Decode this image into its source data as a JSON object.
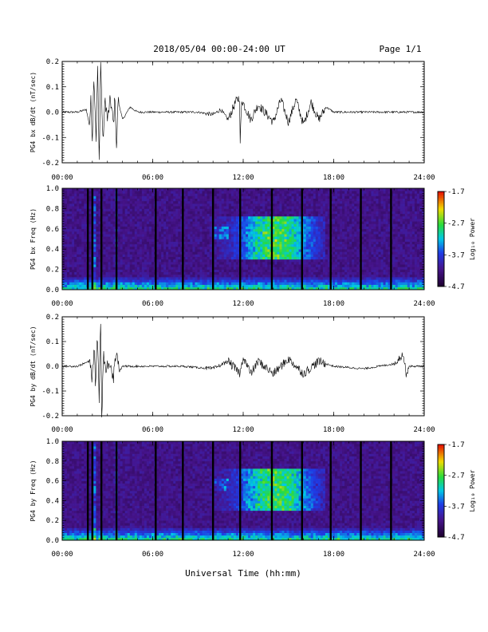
{
  "header": {
    "title": "2018/05/04  00:00-24:00 UT",
    "page": "Page 1/1"
  },
  "xaxis": {
    "label": "Universal Time (hh:mm)",
    "ticks": [
      "00:00",
      "06:00",
      "12:00",
      "18:00",
      "24:00"
    ]
  },
  "colorbar": {
    "label": "Log₁₀ Power",
    "ticks": [
      "-1.7",
      "-2.7",
      "-3.7",
      "-4.7"
    ]
  },
  "chart_data": [
    {
      "type": "line",
      "ylabel": "PG4 bx dB/dt (nT/sec)",
      "ylim": [
        -0.2,
        0.2
      ],
      "yticks": [
        "0.2",
        "0.1",
        "0.0",
        "-0.1",
        "-0.2"
      ],
      "xlim": [
        0,
        24
      ],
      "series": [
        {
          "values": [
            [
              0.0,
              0.0
            ],
            [
              1.0,
              0.0
            ],
            [
              1.6,
              0.01
            ],
            [
              1.8,
              -0.05
            ],
            [
              1.9,
              0.04
            ],
            [
              2.0,
              -0.1
            ],
            [
              2.1,
              0.15
            ],
            [
              2.25,
              -0.1
            ],
            [
              2.35,
              0.18
            ],
            [
              2.45,
              -0.2
            ],
            [
              2.55,
              0.2
            ],
            [
              2.7,
              -0.12
            ],
            [
              2.85,
              0.05
            ],
            [
              3.0,
              -0.03
            ],
            [
              3.2,
              0.05
            ],
            [
              3.4,
              -0.05
            ],
            [
              3.5,
              0.07
            ],
            [
              3.6,
              -0.16
            ],
            [
              3.7,
              0.05
            ],
            [
              4.0,
              -0.03
            ],
            [
              4.5,
              0.02
            ],
            [
              5.0,
              0.0
            ],
            [
              6.0,
              0.0
            ],
            [
              7.0,
              0.0
            ],
            [
              8.0,
              0.0
            ],
            [
              9.0,
              0.0
            ],
            [
              10.0,
              -0.01
            ],
            [
              10.5,
              0.01
            ],
            [
              11.0,
              -0.03
            ],
            [
              11.5,
              0.04
            ],
            [
              11.75,
              0.06
            ],
            [
              11.8,
              -0.12
            ],
            [
              11.9,
              0.05
            ],
            [
              12.5,
              -0.03
            ],
            [
              13.0,
              0.03
            ],
            [
              14.0,
              -0.04
            ],
            [
              14.5,
              0.05
            ],
            [
              15.0,
              -0.04
            ],
            [
              15.5,
              0.05
            ],
            [
              16.0,
              -0.05
            ],
            [
              16.5,
              0.04
            ],
            [
              17.0,
              -0.03
            ],
            [
              17.5,
              0.02
            ],
            [
              18.0,
              0.0
            ],
            [
              20.0,
              0.0
            ],
            [
              22.0,
              0.0
            ],
            [
              24.0,
              0.0
            ]
          ]
        }
      ]
    },
    {
      "type": "heatmap",
      "ylabel": "PG4 bx Freq (Hz)",
      "ylim": [
        0.0,
        1.0
      ],
      "yticks": [
        "1.0",
        "0.8",
        "0.6",
        "0.4",
        "0.2",
        "0.0"
      ],
      "xlim": [
        0,
        24
      ],
      "zlim": [
        -4.7,
        -1.7
      ],
      "zlabel": "Log₁₀ Power"
    },
    {
      "type": "line",
      "ylabel": "PG4 by dB/dt (nT/sec)",
      "ylim": [
        -0.2,
        0.2
      ],
      "yticks": [
        "0.2",
        "0.1",
        "0.0",
        "-0.1",
        "-0.2"
      ],
      "xlim": [
        0,
        24
      ],
      "series": [
        {
          "values": [
            [
              0.0,
              0.0
            ],
            [
              1.0,
              0.0
            ],
            [
              1.8,
              0.02
            ],
            [
              2.0,
              -0.05
            ],
            [
              2.1,
              0.08
            ],
            [
              2.2,
              -0.06
            ],
            [
              2.35,
              0.12
            ],
            [
              2.45,
              -0.13
            ],
            [
              2.55,
              0.2
            ],
            [
              2.62,
              -0.2
            ],
            [
              2.75,
              0.06
            ],
            [
              2.9,
              -0.03
            ],
            [
              3.1,
              0.03
            ],
            [
              3.4,
              -0.04
            ],
            [
              3.6,
              0.07
            ],
            [
              3.8,
              -0.02
            ],
            [
              4.0,
              0.0
            ],
            [
              6.0,
              0.0
            ],
            [
              8.0,
              0.0
            ],
            [
              10.0,
              -0.01
            ],
            [
              11.0,
              0.02
            ],
            [
              11.8,
              -0.03
            ],
            [
              12.0,
              0.04
            ],
            [
              12.5,
              -0.03
            ],
            [
              13.0,
              0.02
            ],
            [
              14.0,
              -0.03
            ],
            [
              15.0,
              0.03
            ],
            [
              16.0,
              -0.03
            ],
            [
              17.0,
              0.02
            ],
            [
              18.0,
              0.0
            ],
            [
              20.0,
              -0.01
            ],
            [
              22.0,
              0.01
            ],
            [
              22.6,
              0.05
            ],
            [
              22.8,
              -0.03
            ],
            [
              23.0,
              0.0
            ],
            [
              24.0,
              0.0
            ]
          ]
        }
      ]
    },
    {
      "type": "heatmap",
      "ylabel": "PG4 by Freq (Hz)",
      "ylim": [
        0.0,
        1.0
      ],
      "yticks": [
        "1.0",
        "0.8",
        "0.6",
        "0.4",
        "0.2",
        "0.0"
      ],
      "xlim": [
        0,
        24
      ],
      "zlim": [
        -4.7,
        -1.7
      ],
      "zlabel": "Log₁₀ Power"
    }
  ]
}
